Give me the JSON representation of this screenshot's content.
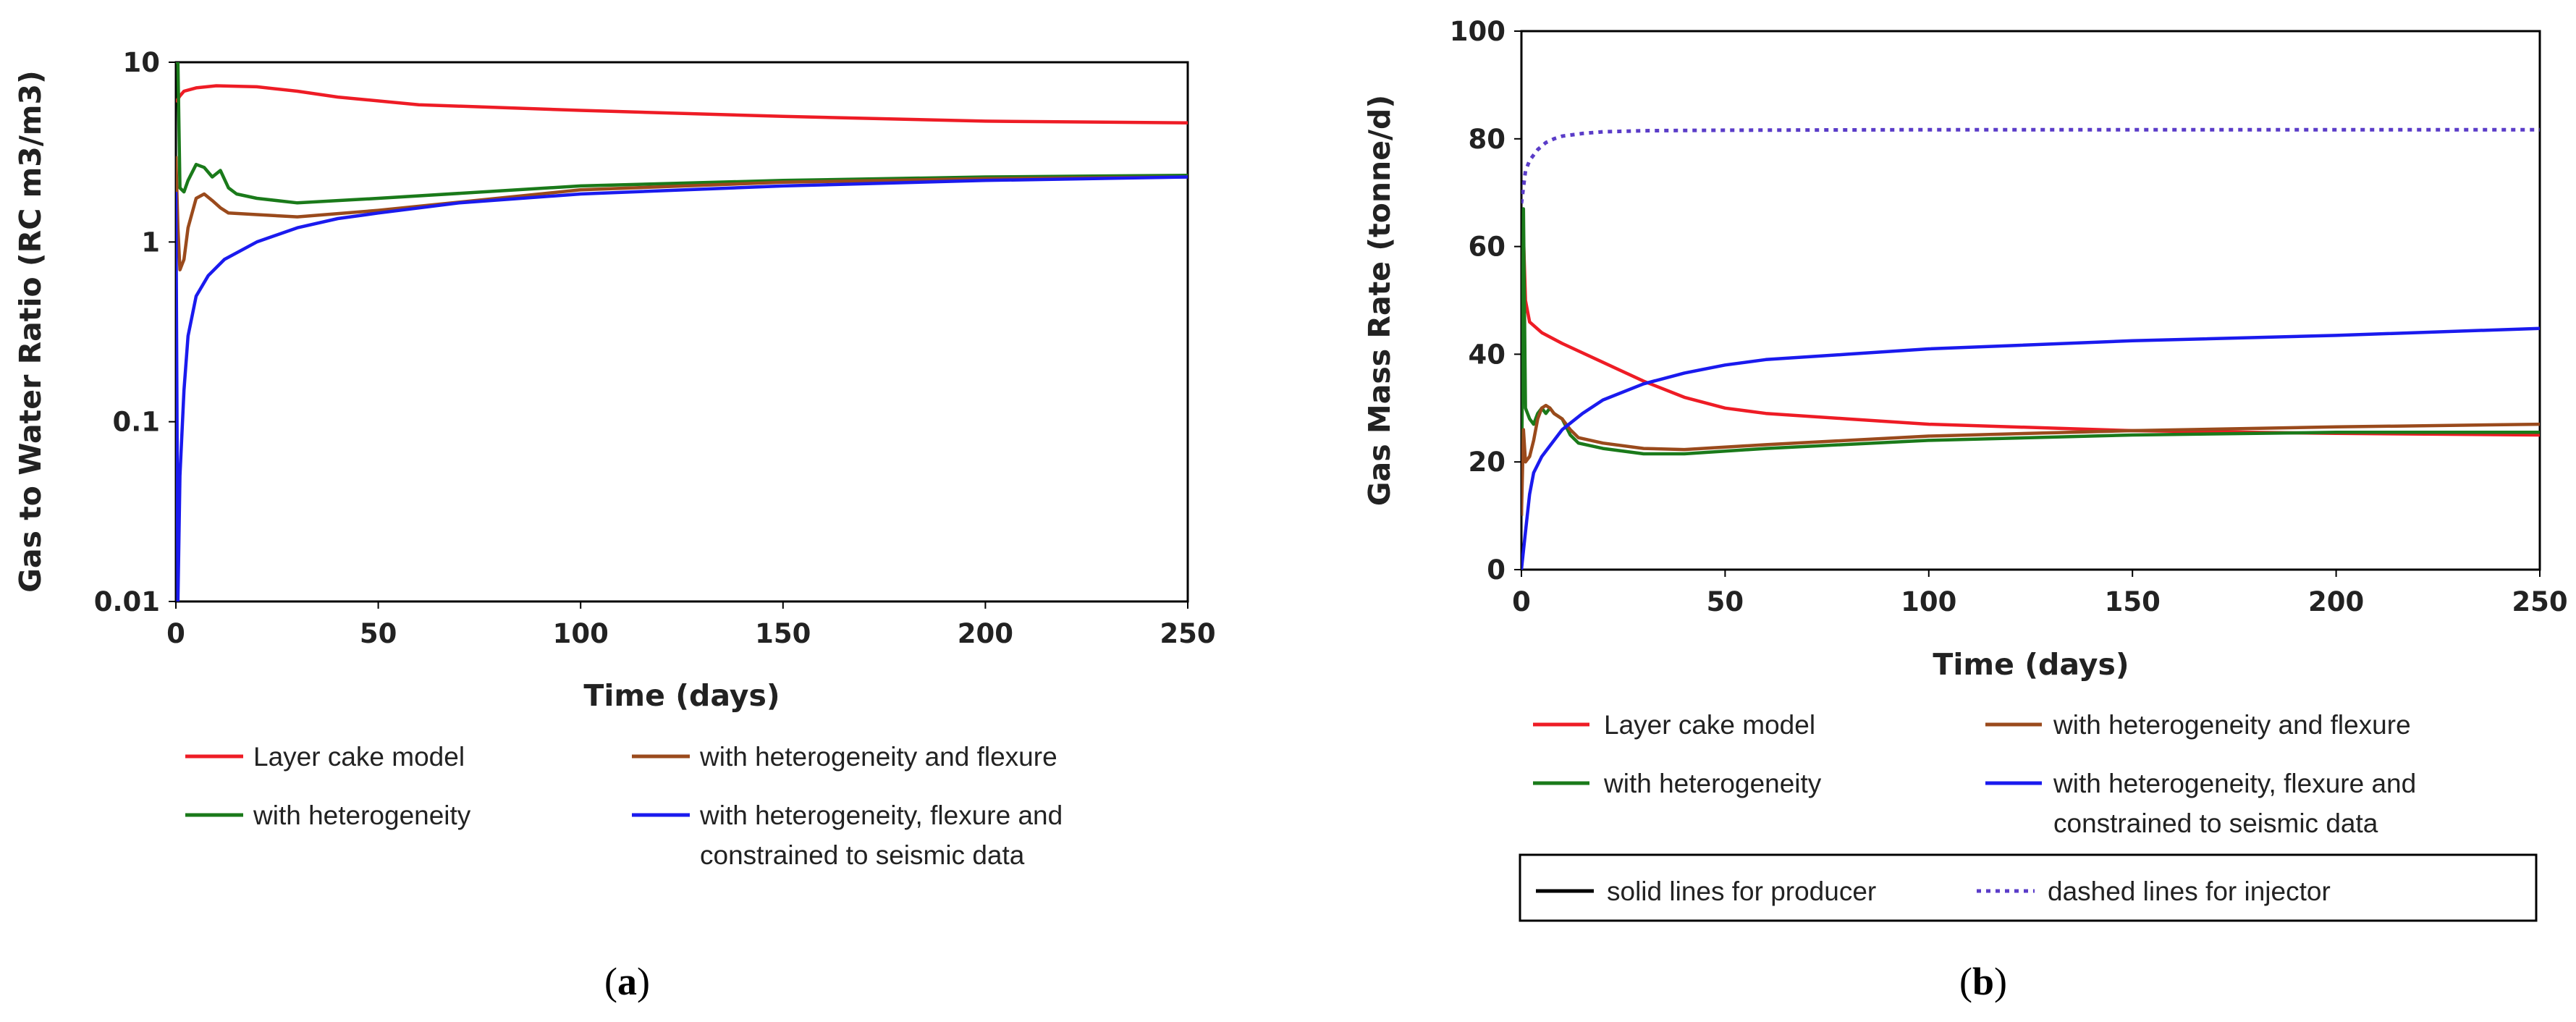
{
  "colors": {
    "layer_cake": "#ee1c25",
    "heterogeneity": "#1a7a1a",
    "heterogeneity_flexure": "#9a4a1c",
    "seismic": "#1a1aee",
    "injector_dotted": "#5a3cc8",
    "axis": "#000000"
  },
  "chart_data": [
    {
      "type": "line",
      "panel": "a",
      "caption": "(a)",
      "caption_letter": "a",
      "title": "",
      "xlabel": "Time (days)",
      "ylabel": "Gas to Water Ratio (RC m3/m3)",
      "xlim": [
        0,
        250
      ],
      "ylim": [
        0.01,
        10
      ],
      "yscale": "log",
      "xticks": [
        0,
        50,
        100,
        150,
        200,
        250
      ],
      "xtick_labels": [
        "0",
        "50",
        "100",
        "150",
        "200",
        "250"
      ],
      "yticks": [
        0.01,
        0.1,
        1,
        10
      ],
      "ytick_labels": [
        "0.01",
        "0.1",
        "1",
        "10"
      ],
      "legend": [
        {
          "label": "Layer cake model",
          "color_key": "layer_cake",
          "dash": "solid"
        },
        {
          "label": "with heterogeneity and flexure",
          "color_key": "heterogeneity_flexure",
          "dash": "solid"
        },
        {
          "label": "with heterogeneity",
          "color_key": "heterogeneity",
          "dash": "solid"
        },
        {
          "label": "with heterogeneity, flexure and",
          "label2": "constrained to seismic data",
          "color_key": "seismic",
          "dash": "solid"
        }
      ],
      "series": [
        {
          "name": "Layer cake model",
          "color_key": "layer_cake",
          "dash": "solid",
          "x": [
            0,
            1,
            2,
            5,
            10,
            20,
            30,
            40,
            60,
            100,
            150,
            200,
            250
          ],
          "y": [
            6.0,
            6.5,
            6.9,
            7.2,
            7.4,
            7.3,
            6.9,
            6.4,
            5.8,
            5.4,
            5.0,
            4.7,
            4.6
          ]
        },
        {
          "name": "with heterogeneity",
          "color_key": "heterogeneity",
          "dash": "solid",
          "x": [
            0,
            0.5,
            1,
            2,
            3,
            5,
            7,
            9,
            11,
            13,
            15,
            20,
            30,
            50,
            100,
            150,
            200,
            250
          ],
          "y": [
            10,
            10,
            2.0,
            1.9,
            2.2,
            2.7,
            2.6,
            2.3,
            2.5,
            2.0,
            1.85,
            1.75,
            1.65,
            1.75,
            2.05,
            2.2,
            2.3,
            2.35
          ]
        },
        {
          "name": "with heterogeneity and flexure",
          "color_key": "heterogeneity_flexure",
          "dash": "solid",
          "x": [
            0,
            0.5,
            1,
            2,
            3,
            5,
            7,
            9,
            11,
            13,
            20,
            30,
            50,
            100,
            150,
            200,
            250
          ],
          "y": [
            3.0,
            1.2,
            0.7,
            0.8,
            1.2,
            1.75,
            1.85,
            1.7,
            1.55,
            1.45,
            1.42,
            1.38,
            1.5,
            1.95,
            2.15,
            2.25,
            2.3
          ]
        },
        {
          "name": "with heterogeneity, flexure and constrained to seismic data",
          "color_key": "seismic",
          "dash": "solid",
          "x": [
            0,
            0.5,
            1,
            2,
            3,
            5,
            8,
            12,
            20,
            30,
            40,
            50,
            70,
            100,
            150,
            200,
            250
          ],
          "y": [
            1.9,
            0.01,
            0.05,
            0.15,
            0.3,
            0.5,
            0.65,
            0.8,
            1.0,
            1.2,
            1.35,
            1.45,
            1.65,
            1.85,
            2.05,
            2.2,
            2.3
          ]
        }
      ]
    },
    {
      "type": "line",
      "panel": "b",
      "caption": "(b)",
      "caption_letter": "b",
      "title": "",
      "xlabel": "Time (days)",
      "ylabel": "Gas Mass Rate (tonne/d)",
      "xlim": [
        0,
        250
      ],
      "ylim": [
        0,
        100
      ],
      "yscale": "linear",
      "xticks": [
        0,
        50,
        100,
        150,
        200,
        250
      ],
      "xtick_labels": [
        "0",
        "50",
        "100",
        "150",
        "200",
        "250"
      ],
      "yticks": [
        0,
        20,
        40,
        60,
        80,
        100
      ],
      "ytick_labels": [
        "0",
        "20",
        "40",
        "60",
        "80",
        "100"
      ],
      "legend": [
        {
          "label": "Layer cake model",
          "color_key": "layer_cake",
          "dash": "solid"
        },
        {
          "label": "with heterogeneity and flexure",
          "color_key": "heterogeneity_flexure",
          "dash": "solid"
        },
        {
          "label": "with heterogeneity",
          "color_key": "heterogeneity",
          "dash": "solid"
        },
        {
          "label": "with heterogeneity, flexure and",
          "label2": "constrained to seismic data",
          "color_key": "seismic",
          "dash": "solid"
        }
      ],
      "style_legend": [
        {
          "label": "solid lines for producer",
          "color_key": "axis",
          "dash": "solid"
        },
        {
          "label": "dashed lines for injector",
          "color_key": "injector_dotted",
          "dash": "dotted"
        }
      ],
      "series": [
        {
          "name": "Layer cake model (producer)",
          "color_key": "layer_cake",
          "dash": "solid",
          "x": [
            0,
            0.5,
            1,
            2,
            5,
            10,
            20,
            30,
            40,
            50,
            60,
            80,
            100,
            150,
            200,
            250
          ],
          "y": [
            20,
            62,
            50,
            46,
            44,
            42,
            38.5,
            35,
            32,
            30,
            29,
            28,
            27,
            25.8,
            25.3,
            25
          ]
        },
        {
          "name": "with heterogeneity (producer)",
          "color_key": "heterogeneity",
          "dash": "solid",
          "x": [
            0,
            0.5,
            1,
            2,
            3,
            4,
            5,
            6,
            7,
            8,
            10,
            12,
            14,
            20,
            30,
            40,
            60,
            100,
            150,
            200,
            250
          ],
          "y": [
            10,
            67,
            30,
            28,
            27,
            29,
            30,
            29,
            30,
            29,
            28,
            25,
            23.5,
            22.5,
            21.5,
            21.5,
            22.5,
            24,
            25,
            25.5,
            25.5
          ]
        },
        {
          "name": "with heterogeneity and flexure (producer)",
          "color_key": "heterogeneity_flexure",
          "dash": "solid",
          "x": [
            0,
            0.5,
            1,
            2,
            3,
            4,
            5,
            6,
            7,
            8,
            10,
            12,
            14,
            20,
            30,
            40,
            60,
            100,
            150,
            200,
            250
          ],
          "y": [
            10,
            26,
            20,
            21,
            24,
            28,
            30,
            30.5,
            30,
            29,
            28,
            26,
            24.5,
            23.5,
            22.5,
            22.3,
            23.2,
            24.8,
            25.8,
            26.5,
            27
          ]
        },
        {
          "name": "with heterogeneity, flexure and constrained to seismic data (producer)",
          "color_key": "seismic",
          "dash": "solid",
          "x": [
            0,
            1,
            2,
            3,
            5,
            7,
            10,
            15,
            20,
            30,
            40,
            50,
            60,
            80,
            100,
            150,
            200,
            250
          ],
          "y": [
            0,
            7,
            14,
            18,
            21,
            23,
            26,
            29,
            31.5,
            34.5,
            36.5,
            38,
            39,
            40,
            41,
            42.5,
            43.5,
            44.8
          ]
        },
        {
          "name": "Injector (dashed)",
          "color_key": "injector_dotted",
          "dash": "dotted",
          "x": [
            0,
            1,
            2,
            4,
            6,
            8,
            10,
            15,
            20,
            30,
            50,
            100,
            150,
            200,
            250
          ],
          "y": [
            68,
            74,
            76,
            78,
            79.3,
            80,
            80.5,
            81,
            81.3,
            81.5,
            81.6,
            81.7,
            81.7,
            81.7,
            81.7
          ]
        }
      ]
    }
  ]
}
